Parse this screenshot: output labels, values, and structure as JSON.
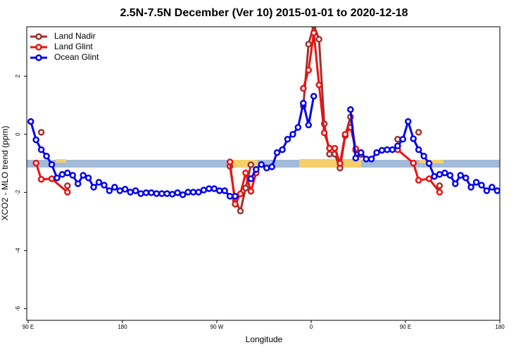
{
  "chart_data": {
    "type": "line",
    "title": "2.5N-7.5N December (Ver 10)   2015-01-01 to 2020-12-18",
    "x_label": "Longitude",
    "y_label": "XCO2 - MLO trend (ppm)",
    "xlim": [
      90,
      540
    ],
    "ylim": [
      -6.4,
      3.7
    ],
    "xticks": [
      {
        "value": 90,
        "label": "90 E"
      },
      180,
      {
        "value": 270,
        "label": "90 W"
      },
      {
        "value": 360,
        "label": "0"
      },
      {
        "value": 450,
        "label": "90 E"
      },
      {
        "value": 540,
        "label": "180"
      }
    ],
    "yticks": [
      -6,
      -4,
      -2,
      0,
      2
    ],
    "legend": "top-left",
    "series": [
      {
        "name": "Land Nadir",
        "color": "#a0322d",
        "x": [
          102.5,
          110,
          127.5,
          200,
          282.5,
          287.5,
          292.5,
          297.5,
          302.5,
          330,
          352.5,
          357.5,
          362.5,
          367.5,
          372.5,
          377.5,
          382.5,
          387.5,
          392.5,
          397.5,
          402.5,
          407.5,
          420,
          442.5,
          450,
          462.5,
          470,
          482.5
        ],
        "values": [
          0.07,
          null,
          -1.77,
          null,
          -1.1,
          -2.25,
          -2.64,
          -1.85,
          -1.05,
          null,
          0.97,
          3.1,
          3.75,
          3.27,
          0.36,
          -0.68,
          -0.68,
          -1.16,
          -0.05,
          0.6,
          -0.55,
          -0.7,
          null,
          -0.17,
          null,
          0.07,
          null,
          -1.77
        ]
      },
      {
        "name": "Land Glint",
        "color": "#ee1111",
        "x": [
          97.5,
          102.5,
          112.5,
          127.5,
          200,
          282.5,
          287.5,
          292.5,
          297.5,
          302.5,
          307.5,
          330,
          352.5,
          357.5,
          362.5,
          367.5,
          372.5,
          377.5,
          382.5,
          387.5,
          392.5,
          397.5,
          402.5,
          407.5,
          420,
          442.5,
          457.5,
          462.5,
          472.5,
          482.5
        ],
        "values": [
          -0.99,
          -1.55,
          -1.53,
          -1.99,
          null,
          -0.95,
          -2.4,
          -2.05,
          -1.33,
          -1.96,
          -1.33,
          null,
          1.58,
          2.21,
          3.49,
          1.7,
          0.05,
          -0.48,
          -0.48,
          -1.0,
          0.0,
          0.24,
          -0.5,
          -0.63,
          null,
          -0.53,
          -0.99,
          -1.58,
          -1.53,
          -1.99
        ]
      },
      {
        "name": "Ocean Glint",
        "color": "#0000ee",
        "x": [
          92.5,
          97.5,
          102.5,
          107.5,
          112.5,
          117.5,
          122.5,
          127.5,
          132.5,
          137.5,
          142.5,
          147.5,
          152.5,
          157.5,
          162.5,
          167.5,
          172.5,
          177.5,
          182.5,
          187.5,
          192.5,
          197.5,
          202.5,
          207.5,
          212.5,
          217.5,
          222.5,
          227.5,
          232.5,
          237.5,
          242.5,
          247.5,
          252.5,
          257.5,
          262.5,
          267.5,
          272.5,
          277.5,
          282.5,
          287.5,
          292.5,
          297.5,
          302.5,
          307.5,
          312.5,
          317.5,
          322.5,
          327.5,
          332.5,
          337.5,
          342.5,
          347.5,
          352.5,
          357.5,
          362.5,
          367.5,
          372.5,
          377.5,
          382.5,
          387.5,
          392.5,
          397.5,
          402.5,
          407.5,
          412.5,
          417.5,
          422.5,
          427.5,
          432.5,
          437.5,
          442.5,
          447.5,
          452.5,
          457.5,
          462.5,
          467.5,
          472.5,
          477.5,
          482.5,
          487.5,
          492.5,
          497.5,
          502.5,
          507.5,
          512.5,
          517.5,
          522.5,
          527.5,
          532.5,
          537.5
        ],
        "values": [
          0.44,
          -0.19,
          -0.53,
          -0.75,
          -1.04,
          -1.5,
          -1.38,
          -1.33,
          -1.41,
          -1.7,
          -1.41,
          -1.5,
          -1.82,
          -1.65,
          -1.75,
          -1.94,
          -1.82,
          -1.94,
          -1.89,
          -1.99,
          -1.94,
          -2.04,
          -2.01,
          -2.01,
          -2.04,
          -2.04,
          -2.04,
          -2.06,
          -2.01,
          -2.08,
          -1.99,
          -1.99,
          -1.99,
          -1.92,
          -1.87,
          -1.87,
          -1.94,
          -1.94,
          -2.13,
          -2.13,
          null,
          null,
          -1.53,
          -1.21,
          -1.04,
          -1.16,
          -1.12,
          -0.63,
          -0.53,
          -0.17,
          0.0,
          0.24,
          1.07,
          0.32,
          1.31,
          null,
          null,
          null,
          null,
          null,
          null,
          0.85,
          -0.82,
          -0.63,
          -0.85,
          -0.85,
          -0.63,
          -0.55,
          -0.53,
          -0.53,
          -0.4,
          -0.17,
          0.44,
          -0.15,
          -0.53,
          -0.75,
          -1.0,
          -1.45,
          -1.38,
          -1.33,
          -1.41,
          -1.7,
          -1.41,
          -1.5,
          -1.82,
          -1.65,
          -1.75,
          -1.94,
          -1.82,
          -1.94
        ]
      }
    ]
  }
}
